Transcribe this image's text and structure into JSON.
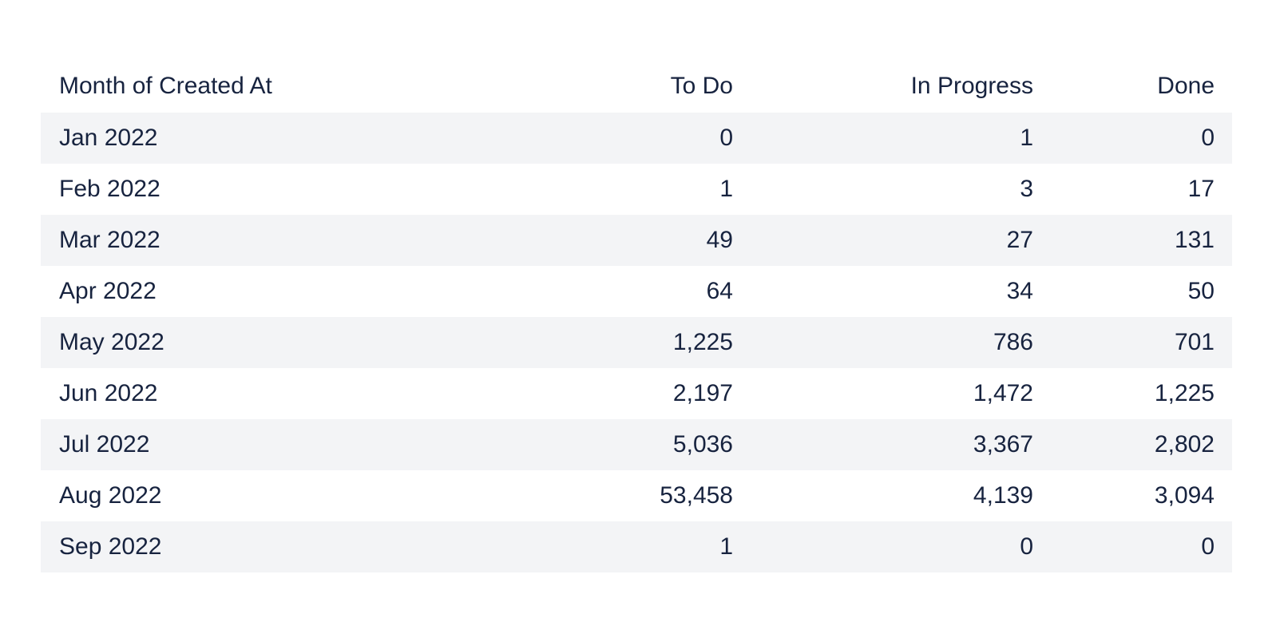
{
  "chart_data": {
    "type": "table",
    "columns": [
      "Month of Created At",
      "To Do",
      "In Progress",
      "Done"
    ],
    "rows": [
      [
        "Jan 2022",
        "0",
        "1",
        "0"
      ],
      [
        "Feb 2022",
        "1",
        "3",
        "17"
      ],
      [
        "Mar 2022",
        "49",
        "27",
        "131"
      ],
      [
        "Apr 2022",
        "64",
        "34",
        "50"
      ],
      [
        "May 2022",
        "1,225",
        "786",
        "701"
      ],
      [
        "Jun 2022",
        "2,197",
        "1,472",
        "1,225"
      ],
      [
        "Jul 2022",
        "5,036",
        "3,367",
        "2,802"
      ],
      [
        "Aug 2022",
        "53,458",
        "4,139",
        "3,094"
      ],
      [
        "Sep 2022",
        "1",
        "0",
        "0"
      ]
    ]
  },
  "colors": {
    "text": "#17233f",
    "stripe": "#f3f4f6",
    "background": "#ffffff"
  }
}
